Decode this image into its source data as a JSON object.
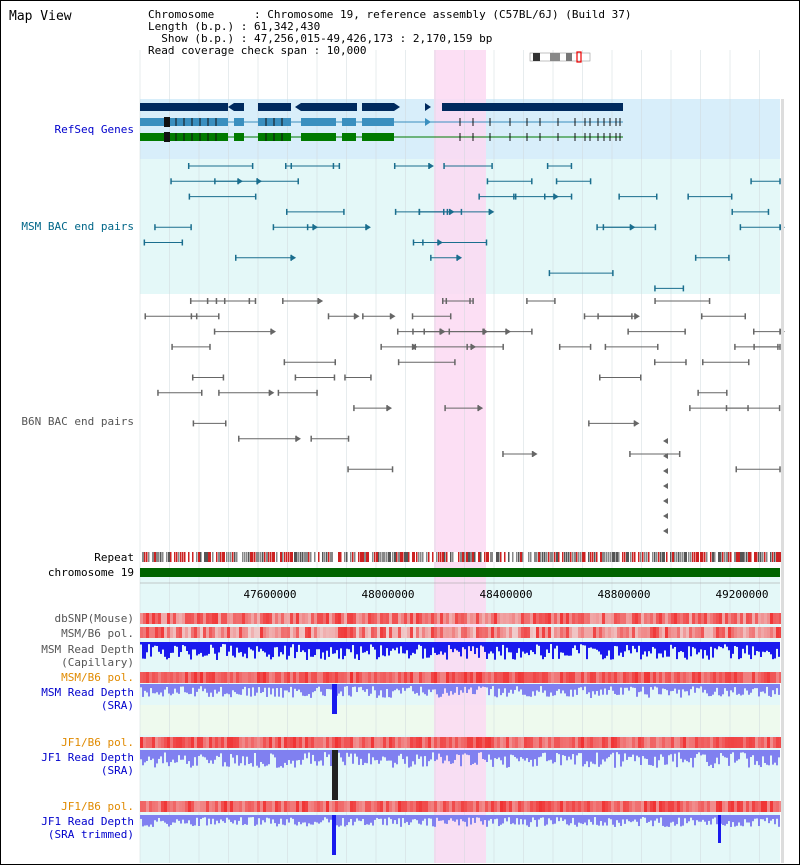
{
  "header": {
    "title": "Map View",
    "chromosome_line": "Chromosome      : Chromosome 19, reference assembly (C57BL/6J) (Build 37)",
    "length_line": "Length (b.p.) : 61,342,430",
    "show_line": "  Show (b.p.) : 47,256,015-49,426,173 : 2,170,159 bp",
    "coverage_line": "Read coverage check span : 10,000"
  },
  "tracks": {
    "refseq": "RefSeq Genes",
    "msm_bac": "MSM BAC end pairs",
    "b6n_bac": "B6N BAC end pairs",
    "repeat": "Repeat",
    "chromosome": "chromosome 19",
    "dbsnp": "dbSNP(Mouse)",
    "msm_b6_pol": "MSM/B6 pol.",
    "msm_depth_cap_1": "MSM Read Depth",
    "msm_depth_cap_2": "(Capillary)",
    "msm_b6_pol2": "MSM/B6 pol.",
    "msm_depth_sra_1": "MSM Read Depth",
    "msm_depth_sra_2": "(SRA)",
    "jf1_b6_pol": "JF1/B6 pol.",
    "jf1_depth_sra_1": "JF1 Read Depth",
    "jf1_depth_sra_2": "(SRA)",
    "jf1_b6_pol2": "JF1/B6 pol.",
    "jf1_depth_trim_1": "JF1 Read Depth",
    "jf1_depth_trim_2": "(SRA trimmed)"
  },
  "axis": {
    "ticks": [
      "47600000",
      "48000000",
      "48400000",
      "48800000",
      "49200000"
    ]
  },
  "colors": {
    "highlight": "#fbd9f2",
    "refseq_bg": "#d8eefa",
    "msm_bg": "#e4f8f8",
    "gene_navy": "#002a5e",
    "gene_teal": "#3a8fbf",
    "gene_green": "#007a00",
    "chromosome_bar": "#006400",
    "depth_blue": "#1a1aee",
    "depth_light": "#8080f0",
    "pol_red": "#ee2222"
  }
}
